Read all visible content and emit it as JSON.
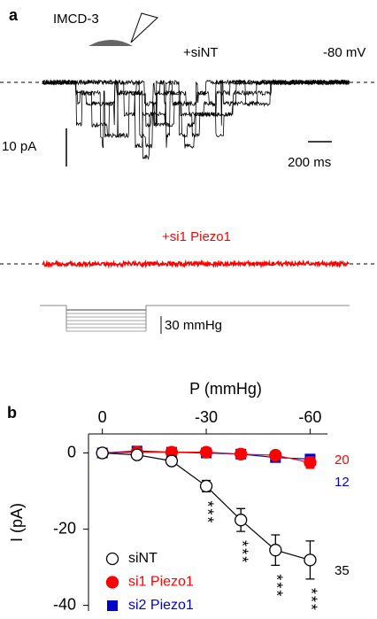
{
  "panel_a": {
    "letter": "a",
    "cell": "IMCD-3",
    "condition_1": "+siNT",
    "holding": "-80 mV",
    "scale_current": "10 pA",
    "scale_time": "200 ms",
    "condition_2": "+si1 Piezo1",
    "scale_pressure": "30 mmHg"
  },
  "chart_data": {
    "type": "line",
    "panel_letter": "b",
    "x_label": "P (mmHg)",
    "y_label": "I (pA)",
    "x": [
      0,
      -10,
      -20,
      -30,
      -40,
      -50,
      -60
    ],
    "xlim": [
      4,
      -65
    ],
    "xticks": [
      0,
      -30,
      -60
    ],
    "ylim": [
      -41.5,
      5
    ],
    "yticks": [
      0,
      -20,
      -40
    ],
    "legend": "lower left",
    "series": [
      {
        "name": "siNT",
        "color": "#000000",
        "marker": "open-circle",
        "n": 35,
        "values": [
          0,
          -0.5,
          -2.1,
          -8.7,
          -17.6,
          -25.5,
          -28.1
        ],
        "errors": [
          0,
          0,
          0,
          1.5,
          3,
          4,
          5
        ]
      },
      {
        "name": "si1 Piezo1",
        "color": "#ff0000",
        "marker": "circle",
        "n": 20,
        "values": [
          0,
          0.2,
          0.2,
          0.2,
          -0.3,
          -0.6,
          -2.5
        ],
        "errors": [
          0,
          0,
          0,
          0,
          0,
          0,
          1.5
        ]
      },
      {
        "name": "si2 Piezo1",
        "color": "#0000cc",
        "marker": "square",
        "n": 12,
        "values": [
          0,
          0.5,
          0.2,
          0,
          -0.3,
          -1.2,
          -1.6
        ],
        "errors": [
          0,
          0,
          0,
          0,
          0,
          0,
          0
        ]
      }
    ],
    "significance": [
      {
        "x": -30,
        "label": "***"
      },
      {
        "x": -40,
        "label": "***"
      },
      {
        "x": -50,
        "label": "***"
      },
      {
        "x": -60,
        "label": "***"
      }
    ]
  }
}
